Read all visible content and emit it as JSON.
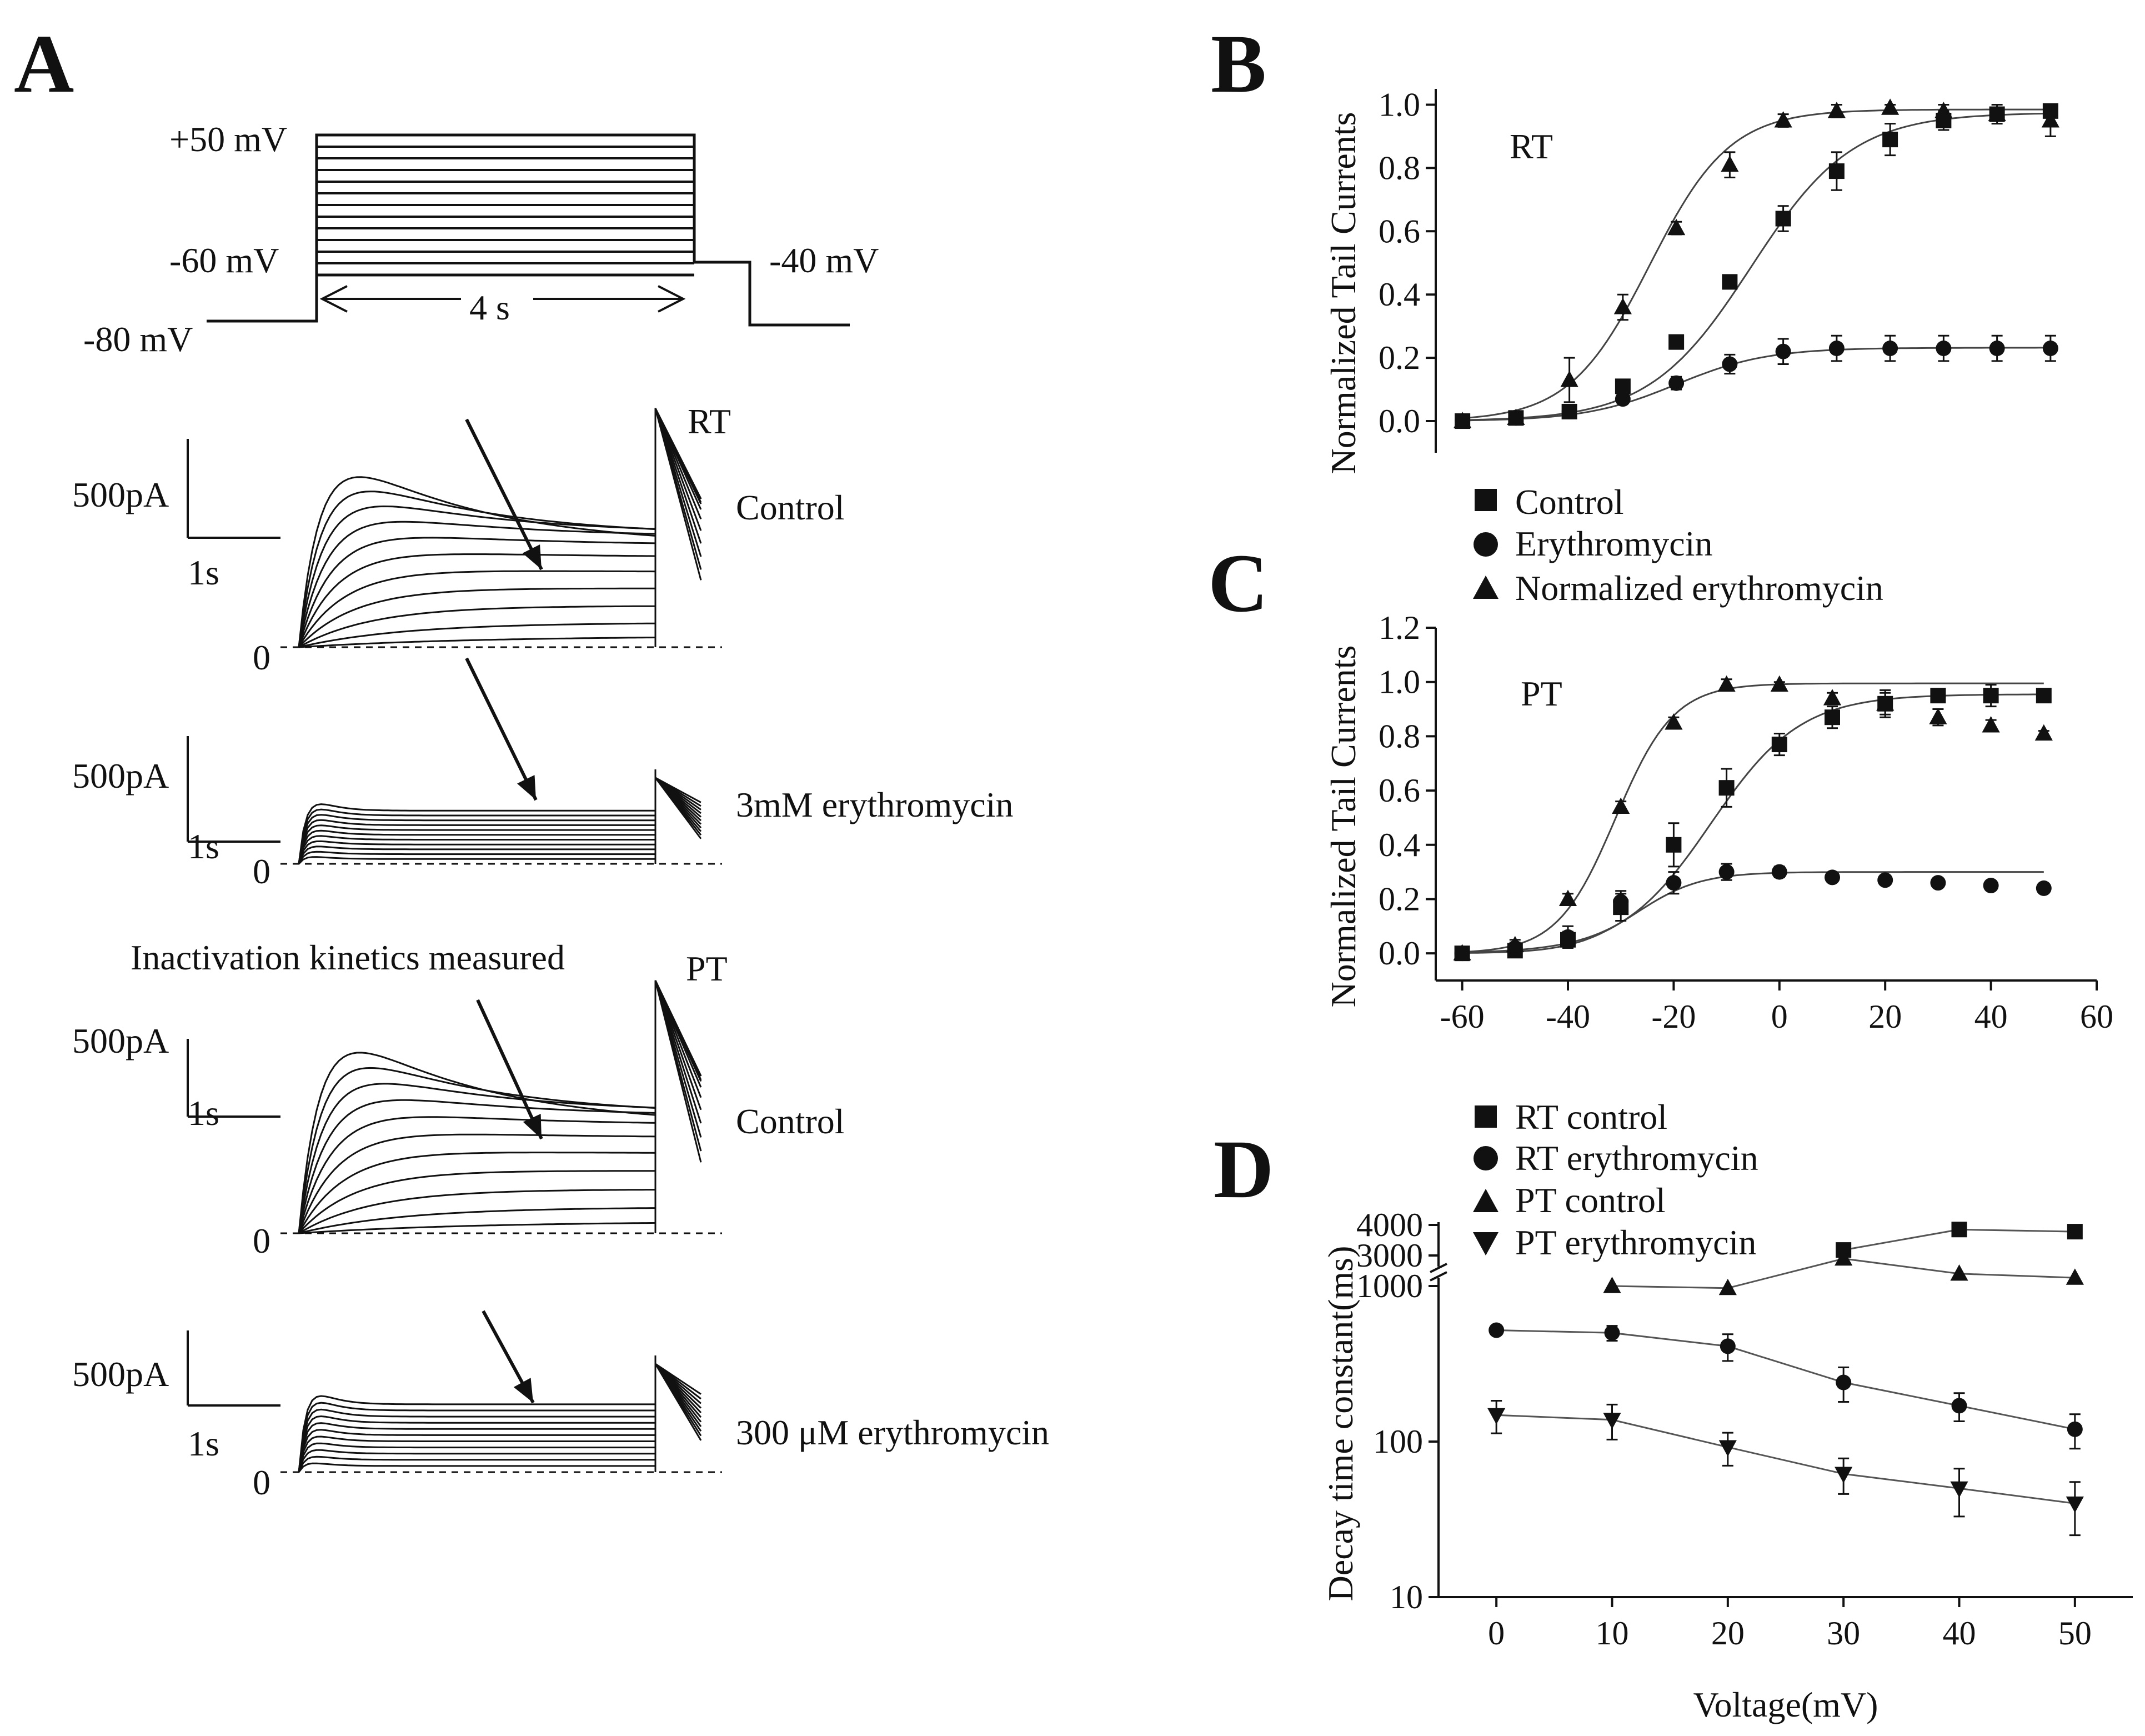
{
  "panels": {
    "A": {
      "letter": "A",
      "protocol": {
        "labels": [
          "+50 mV",
          "-60 mV",
          "-40 mV",
          "-80 mV"
        ],
        "duration": "4 s"
      },
      "traces": [
        {
          "scale_current": "500pA",
          "scale_time": "1s",
          "zero": "0",
          "condition": "Control",
          "temp": "RT"
        },
        {
          "scale_current": "500pA",
          "scale_time": "1s",
          "zero": "0",
          "condition": "3mM erythromycin",
          "temp": ""
        },
        {
          "scale_current": "500pA",
          "scale_time": "1s",
          "zero": "0",
          "condition": "Control",
          "temp": "PT"
        },
        {
          "scale_current": "500pA",
          "scale_time": "1s",
          "zero": "0",
          "condition": "300 μM erythromycin",
          "temp": ""
        }
      ],
      "annotation": "Inactivation kinetics measured"
    },
    "B": {
      "letter": "B"
    },
    "C": {
      "letter": "C"
    },
    "D": {
      "letter": "D"
    }
  },
  "legends": {
    "BC": [
      "Control",
      "Erythromycin",
      "Normalized erythromycin"
    ],
    "D": [
      "RT control",
      "RT erythromycin",
      "PT control",
      "PT erythromycin"
    ]
  },
  "chart_data": [
    {
      "id": "B",
      "type": "scatter",
      "title": "RT",
      "xlabel": "",
      "ylabel": "Normalized Tail Currents",
      "xlim": [
        -65,
        55
      ],
      "ylim": [
        -0.1,
        1.05
      ],
      "yticks": [
        "0.0",
        "0.2",
        "0.4",
        "0.6",
        "0.8",
        "1.0"
      ],
      "x": [
        -60,
        -50,
        -40,
        -30,
        -20,
        -10,
        0,
        10,
        20,
        30,
        40,
        50
      ],
      "series": [
        {
          "name": "Control",
          "marker": "square",
          "values": [
            0.0,
            0.01,
            0.03,
            0.11,
            0.25,
            0.44,
            0.64,
            0.79,
            0.89,
            0.95,
            0.97,
            0.98
          ],
          "err": [
            0.01,
            0.01,
            0.01,
            0.02,
            0.02,
            0.02,
            0.04,
            0.06,
            0.05,
            0.03,
            0.02,
            0.02
          ]
        },
        {
          "name": "Erythromycin",
          "marker": "circle",
          "values": [
            0.0,
            0.01,
            0.03,
            0.07,
            0.12,
            0.18,
            0.22,
            0.23,
            0.23,
            0.23,
            0.23,
            0.23
          ],
          "err": [
            0.01,
            0.01,
            0.01,
            0.01,
            0.02,
            0.03,
            0.04,
            0.04,
            0.04,
            0.04,
            0.04,
            0.04
          ]
        },
        {
          "name": "Normalized erythromycin",
          "marker": "triangle-up",
          "values": [
            0.0,
            0.01,
            0.13,
            0.36,
            0.61,
            0.81,
            0.95,
            0.98,
            0.99,
            0.98,
            0.97,
            0.95
          ],
          "err": [
            0.01,
            0.01,
            0.07,
            0.04,
            0.02,
            0.04,
            0.02,
            0.02,
            0.01,
            0.02,
            0.03,
            0.05
          ]
        }
      ],
      "fits": [
        {
          "name": "Control",
          "vhalf": -6,
          "k": 9.5,
          "amp": 0.975
        },
        {
          "name": "Erythromycin",
          "vhalf": -20,
          "k": 8.5,
          "amp": 0.232
        },
        {
          "name": "Normalized erythromycin",
          "vhalf": -25,
          "k": 7.5,
          "amp": 0.985
        }
      ]
    },
    {
      "id": "C",
      "type": "scatter",
      "title": "PT",
      "xlabel": "",
      "ylabel": "Normalized Tail Currents",
      "xlim": [
        -65,
        60
      ],
      "ylim": [
        -0.1,
        1.2
      ],
      "xticks": [
        "-60",
        "-40",
        "-20",
        "0",
        "20",
        "40",
        "60"
      ],
      "yticks": [
        "0.0",
        "0.2",
        "0.4",
        "0.6",
        "0.8",
        "1.0",
        "1.2"
      ],
      "x": [
        -60,
        -50,
        -40,
        -30,
        -20,
        -10,
        0,
        10,
        20,
        30,
        40,
        50
      ],
      "series": [
        {
          "name": "Control",
          "marker": "square",
          "values": [
            0.0,
            0.01,
            0.05,
            0.17,
            0.4,
            0.61,
            0.77,
            0.87,
            0.92,
            0.95,
            0.95,
            0.95
          ],
          "err": [
            0.01,
            0.02,
            0.03,
            0.05,
            0.08,
            0.07,
            0.04,
            0.04,
            0.05,
            0.02,
            0.04,
            0.02
          ]
        },
        {
          "name": "Erythromycin",
          "marker": "circle",
          "values": [
            0.0,
            0.02,
            0.06,
            0.19,
            0.26,
            0.3,
            0.3,
            0.28,
            0.27,
            0.26,
            0.25,
            0.24
          ],
          "err": [
            0.01,
            0.02,
            0.04,
            0.04,
            0.04,
            0.03,
            0.02,
            0.01,
            0.01,
            0.01,
            0.01,
            0.01
          ]
        },
        {
          "name": "Normalized erythromycin",
          "marker": "triangle-up",
          "values": [
            0.0,
            0.03,
            0.2,
            0.54,
            0.85,
            0.99,
            0.99,
            0.94,
            0.92,
            0.87,
            0.84,
            0.81
          ],
          "err": [
            0.01,
            0.02,
            0.02,
            0.02,
            0.02,
            0.02,
            0.01,
            0.02,
            0.04,
            0.03,
            0.02,
            0.01
          ]
        }
      ],
      "fits": [
        {
          "name": "Control",
          "vhalf": -13,
          "k": 8.5,
          "amp": 0.955
        },
        {
          "name": "Erythromycin",
          "vhalf": -27,
          "k": 6,
          "amp": 0.3
        },
        {
          "name": "Normalized erythromycin",
          "vhalf": -31,
          "k": 5.5,
          "amp": 0.995
        }
      ]
    },
    {
      "id": "D",
      "type": "line",
      "title": "",
      "xlabel": "Voltage(mV)",
      "ylabel": "Decay time constant(ms)",
      "xlim": [
        -5,
        55
      ],
      "yscale": "log-broken",
      "ylim": [
        10,
        1000
      ],
      "upper_range": [
        3000,
        4000
      ],
      "xticks": [
        "0",
        "10",
        "20",
        "30",
        "40",
        "50"
      ],
      "yticks": [
        "10",
        "100",
        "1000",
        "3000",
        "4000"
      ],
      "series": [
        {
          "name": "RT control",
          "marker": "square",
          "x": [
            30,
            40,
            50
          ],
          "values": [
            3180,
            3850,
            3780
          ],
          "err": [
            0,
            0,
            0
          ]
        },
        {
          "name": "RT erythromycin",
          "marker": "circle",
          "x": [
            0,
            10,
            20,
            30,
            40,
            50
          ],
          "values": [
            520,
            500,
            410,
            240,
            170,
            120
          ],
          "err": [
            25,
            55,
            80,
            60,
            35,
            30
          ]
        },
        {
          "name": "PT control",
          "marker": "triangle-up",
          "x": [
            10,
            20,
            30,
            40,
            50
          ],
          "values": [
            1000,
            970,
            1500,
            1200,
            1130
          ],
          "err": [
            0,
            0,
            100,
            0,
            0
          ]
        },
        {
          "name": "PT erythromycin",
          "marker": "triangle-down",
          "x": [
            0,
            10,
            20,
            30,
            40,
            50
          ],
          "values": [
            148,
            138,
            92,
            62,
            50,
            40
          ],
          "err": [
            35,
            35,
            22,
            16,
            17,
            15
          ]
        }
      ]
    }
  ]
}
